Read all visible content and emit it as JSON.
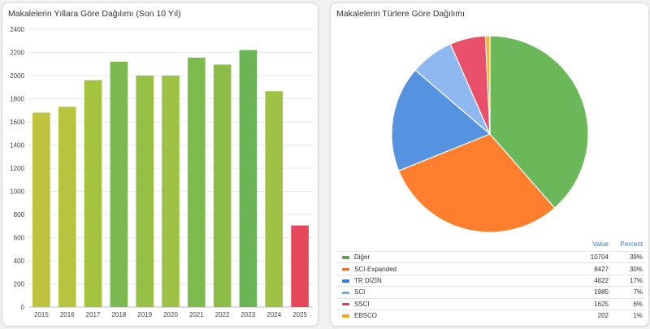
{
  "bar_panel": {
    "title": "Makalelerin Yıllara Göre Dağılımı (Son 10 Yıl)"
  },
  "pie_panel": {
    "title": "Makalelerin Türlere Göre Dağılımı",
    "table": {
      "col_value": "Value",
      "col_percent": "Percent"
    }
  },
  "chart_data": [
    {
      "type": "bar",
      "title": "Makalelerin Yıllara Göre Dağılımı (Son 10 Yıl)",
      "categories": [
        "2015",
        "2016",
        "2017",
        "2018",
        "2019",
        "2020",
        "2021",
        "2022",
        "2023",
        "2024",
        "2025"
      ],
      "values": [
        1680,
        1730,
        1960,
        2120,
        2000,
        2000,
        2155,
        2095,
        2220,
        1865,
        705
      ],
      "colors": [
        "#bec23f",
        "#b8c33f",
        "#a6c33f",
        "#7cb950",
        "#95c045",
        "#9cc246",
        "#7dbb4e",
        "#8dbd48",
        "#6ab655",
        "#a0c244",
        "#e5485a"
      ],
      "ylim": [
        0,
        2400
      ],
      "yticks": [
        0,
        200,
        400,
        600,
        800,
        1000,
        1200,
        1400,
        1600,
        1800,
        2000,
        2200,
        2400
      ],
      "grid": true
    },
    {
      "type": "pie",
      "title": "Makalelerin Türlere Göre Dağılımı",
      "labels": [
        "Diğer",
        "SCI-Expanded",
        "TR DİZİN",
        "SCI",
        "SSCI",
        "EBSCO"
      ],
      "values": [
        10704,
        8427,
        4822,
        1985,
        1625,
        202
      ],
      "percent": [
        "39%",
        "30%",
        "17%",
        "7%",
        "6%",
        "1%"
      ],
      "slice_colors": [
        "#6ab85a",
        "#ff7f2e",
        "#5592e0",
        "#8fb8f0",
        "#e85169",
        "#f5b120"
      ],
      "legend_colors": [
        "#5da651",
        "#f46b1f",
        "#2f7dd8",
        "#65a7e8",
        "#e23a53",
        "#f2ad14"
      ]
    }
  ]
}
